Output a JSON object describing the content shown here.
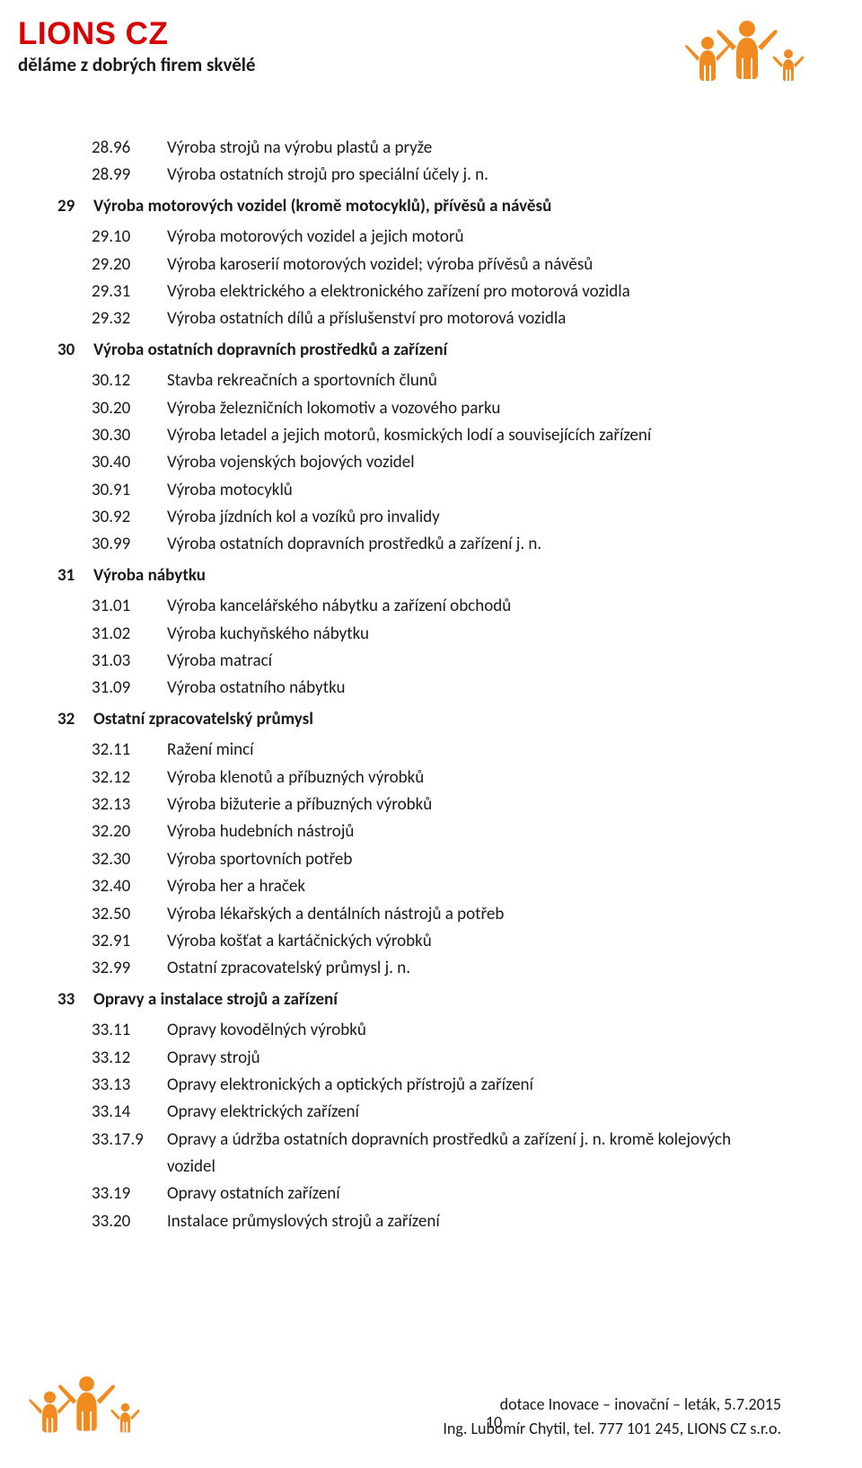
{
  "brand": {
    "name": "LIONS CZ",
    "tag": "děláme z dobrých firem skvělé",
    "color_primary": "#d80000",
    "color_logo": "#f18a1f"
  },
  "sections": [
    {
      "head": null,
      "rows": [
        {
          "code": "28.96",
          "desc": "Výroba strojů na výrobu plastů a pryže"
        },
        {
          "code": "28.99",
          "desc": "Výroba ostatních strojů pro speciální účely j. n."
        }
      ]
    },
    {
      "head": {
        "code": "29",
        "title": "Výroba motorových vozidel (kromě motocyklů), přívěsů a návěsů"
      },
      "rows": [
        {
          "code": "29.10",
          "desc": "Výroba motorových vozidel a jejich motorů"
        },
        {
          "code": "29.20",
          "desc": "Výroba karoserií motorových vozidel; výroba přívěsů a návěsů"
        },
        {
          "code": "29.31",
          "desc": "Výroba elektrického a elektronického zařízení pro motorová vozidla"
        },
        {
          "code": "29.32",
          "desc": "Výroba ostatních dílů a příslušenství pro motorová vozidla"
        }
      ]
    },
    {
      "head": {
        "code": "30",
        "title": "Výroba ostatních dopravních prostředků a zařízení"
      },
      "rows": [
        {
          "code": "30.12",
          "desc": "Stavba rekreačních a sportovních člunů"
        },
        {
          "code": "30.20",
          "desc": "Výroba železničních lokomotiv a vozového parku"
        },
        {
          "code": "30.30",
          "desc": "Výroba letadel a jejich motorů, kosmických lodí a souvisejících zařízení"
        },
        {
          "code": "30.40",
          "desc": "Výroba vojenských bojových vozidel"
        },
        {
          "code": "30.91",
          "desc": "Výroba motocyklů"
        },
        {
          "code": "30.92",
          "desc": "Výroba jízdních kol a vozíků pro invalidy"
        },
        {
          "code": "30.99",
          "desc": "Výroba ostatních dopravních prostředků a zařízení j. n."
        }
      ]
    },
    {
      "head": {
        "code": "31",
        "title": "Výroba nábytku"
      },
      "rows": [
        {
          "code": "31.01",
          "desc": "Výroba kancelářského nábytku a zařízení obchodů"
        },
        {
          "code": "31.02",
          "desc": "Výroba kuchyňského nábytku"
        },
        {
          "code": "31.03",
          "desc": "Výroba matrací"
        },
        {
          "code": "31.09",
          "desc": "Výroba ostatního nábytku"
        }
      ]
    },
    {
      "head": {
        "code": "32",
        "title": "Ostatní zpracovatelský průmysl"
      },
      "rows": [
        {
          "code": "32.11",
          "desc": "Ražení mincí"
        },
        {
          "code": "32.12",
          "desc": "Výroba klenotů a příbuzných výrobků"
        },
        {
          "code": "32.13",
          "desc": "Výroba bižuterie a příbuzných výrobků"
        },
        {
          "code": "32.20",
          "desc": "Výroba hudebních nástrojů"
        },
        {
          "code": "32.30",
          "desc": "Výroba sportovních potřeb"
        },
        {
          "code": "32.40",
          "desc": "Výroba her a hraček"
        },
        {
          "code": "32.50",
          "desc": "Výroba lékařských a dentálních nástrojů a potřeb"
        },
        {
          "code": "32.91",
          "desc": "Výroba košťat a kartáčnických výrobků"
        },
        {
          "code": "32.99",
          "desc": "Ostatní zpracovatelský průmysl j. n."
        }
      ]
    },
    {
      "head": {
        "code": "33",
        "title": "Opravy a instalace strojů a zařízení"
      },
      "rows": [
        {
          "code": "33.11",
          "desc": "Opravy kovodělných výrobků"
        },
        {
          "code": "33.12",
          "desc": "Opravy strojů"
        },
        {
          "code": "33.13",
          "desc": "Opravy elektronických a optických přístrojů a zařízení"
        },
        {
          "code": "33.14",
          "desc": "Opravy elektrických zařízení"
        },
        {
          "code": "33.17.9",
          "desc": "Opravy a údržba ostatních dopravních prostředků a zařízení j. n. kromě kolejových vozidel"
        },
        {
          "code": "33.19",
          "desc": "Opravy ostatních zařízení"
        },
        {
          "code": "33.20",
          "desc": "Instalace průmyslových strojů a zařízení"
        }
      ]
    }
  ],
  "footer": {
    "line1": "dotace Inovace – inovační  – leták, 5.7.2015",
    "line2": "Ing. Lubomír Chytil, tel. 777 101 245, LIONS CZ s.r.o.",
    "page_number": "10"
  }
}
